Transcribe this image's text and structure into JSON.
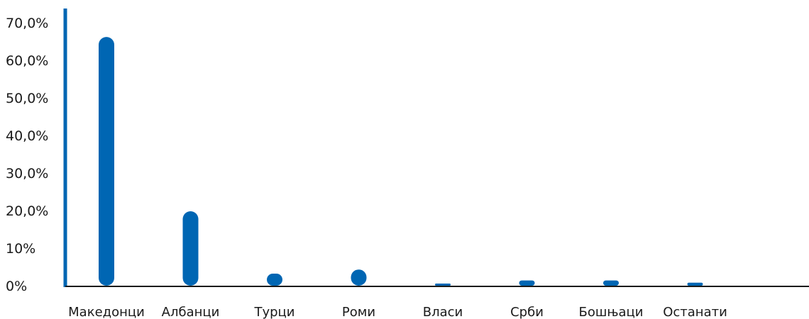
{
  "chart_data": {
    "type": "bar",
    "title": "",
    "xlabel": "",
    "ylabel": "",
    "categories": [
      "Македонци",
      "Албанци",
      "Турци",
      "Роми",
      "Власи",
      "Срби",
      "Бошњаци",
      "Останати"
    ],
    "values": [
      66.2,
      19.8,
      3.2,
      4.3,
      0.4,
      1.4,
      1.4,
      0.8
    ],
    "ylim": [
      0,
      70
    ],
    "y_ticks": [
      0,
      10,
      20,
      30,
      40,
      50,
      60,
      70
    ],
    "y_tick_labels": [
      "0%",
      "10%",
      "20,0%",
      "30,0%",
      "40,0%",
      "50,0%",
      "60,0%",
      "70,0%"
    ],
    "grid": false,
    "legend": "none",
    "bar_color": "#0066b3",
    "axis_color": "#0066b3"
  }
}
